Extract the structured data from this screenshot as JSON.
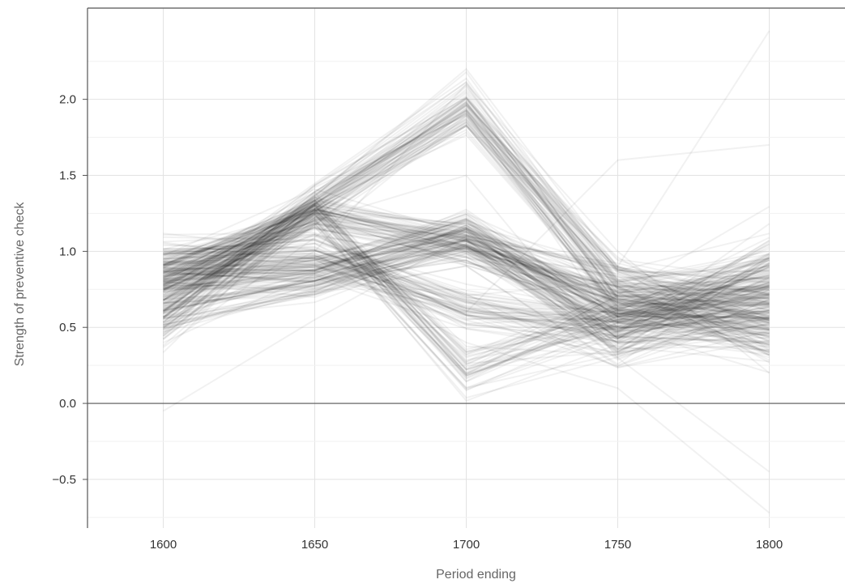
{
  "chart_data": {
    "type": "line",
    "title": "",
    "xlabel": "Period ending",
    "ylabel": "Strength of preventive check",
    "x": [
      1600,
      1650,
      1700,
      1750,
      1800
    ],
    "xlim": [
      1575,
      1825
    ],
    "ylim": [
      -0.82,
      2.6
    ],
    "xticks": [
      "1600",
      "1650",
      "1700",
      "1750",
      "1800"
    ],
    "yticks": [
      "2.0",
      "1.5",
      "1.0",
      "0.5",
      "0.0",
      "−0.5"
    ],
    "ytick_values": [
      2.0,
      1.5,
      1.0,
      0.5,
      0.0,
      -0.5
    ],
    "grid": true,
    "reference_line_y": 0,
    "line_color": "#000000",
    "line_opacity": 0.055,
    "series_count": 300,
    "clusters": [
      {
        "weight": 0.24,
        "values": [
          0.55,
          1.3,
          1.95,
          0.75,
          0.65
        ]
      },
      {
        "weight": 0.18,
        "values": [
          0.85,
          1.25,
          1.05,
          0.7,
          0.6
        ]
      },
      {
        "weight": 0.18,
        "values": [
          0.8,
          0.85,
          1.1,
          0.55,
          0.75
        ]
      },
      {
        "weight": 0.16,
        "values": [
          0.75,
          1.28,
          0.22,
          0.55,
          0.7
        ]
      },
      {
        "weight": 0.14,
        "values": [
          0.95,
          1.0,
          0.65,
          0.5,
          0.55
        ]
      },
      {
        "weight": 0.1,
        "values": [
          0.6,
          0.8,
          1.1,
          0.45,
          0.9
        ]
      }
    ],
    "cluster_spread": [
      0.18,
      0.12,
      0.18,
      0.28,
      0.45
    ],
    "outliers": [
      {
        "values": [
          -0.05,
          0.55,
          1.1,
          0.9,
          2.45
        ]
      },
      {
        "values": [
          1.05,
          0.95,
          0.4,
          0.1,
          -0.72
        ]
      },
      {
        "values": [
          0.4,
          0.85,
          0.6,
          1.6,
          1.7
        ]
      },
      {
        "values": [
          0.9,
          1.2,
          1.5,
          0.3,
          -0.45
        ]
      },
      {
        "values": [
          0.5,
          1.0,
          2.1,
          1.0,
          0.2
        ]
      }
    ]
  }
}
